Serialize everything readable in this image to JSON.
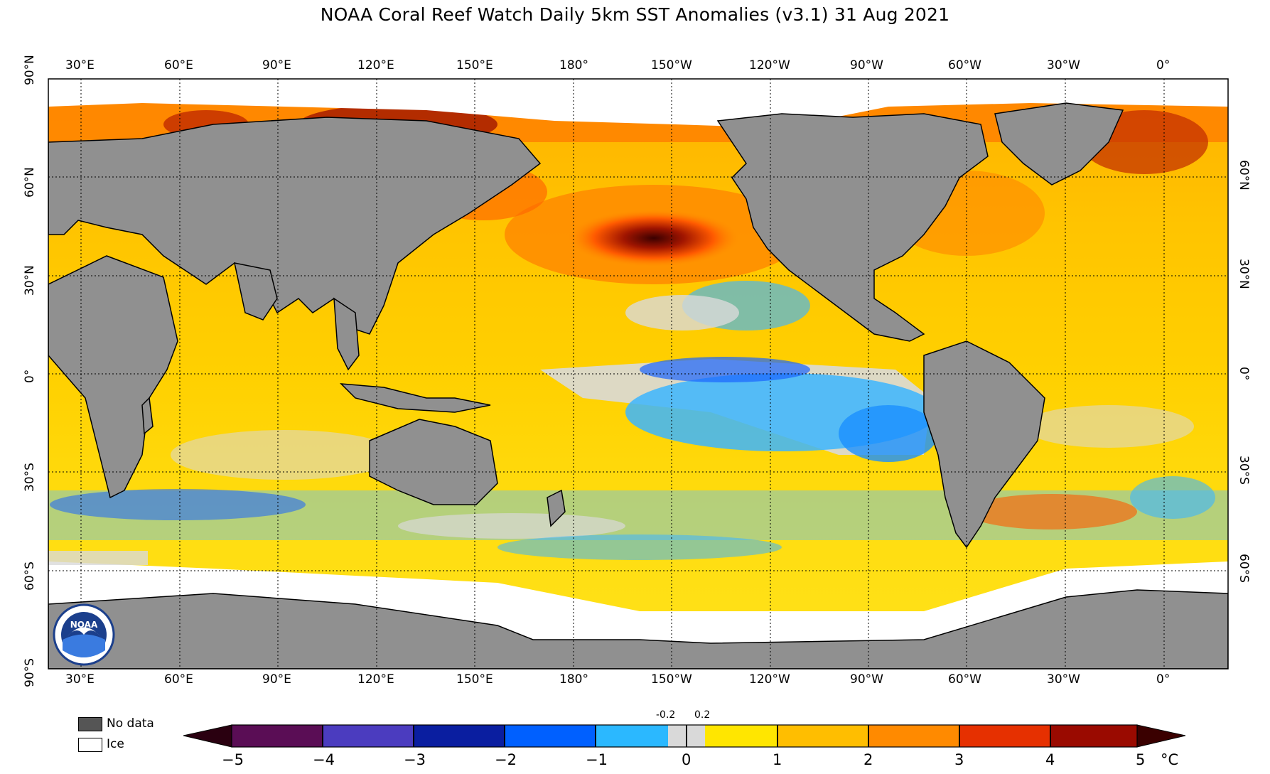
{
  "title": "NOAA Coral Reef Watch Daily 5km SST Anomalies  (v3.1)   31 Aug 2021",
  "longitude_labels": [
    "30°E",
    "60°E",
    "90°E",
    "120°E",
    "150°E",
    "180°",
    "150°W",
    "120°W",
    "90°W",
    "60°W",
    "30°W",
    "0°"
  ],
  "latitude_labels_left": [
    "90°N",
    "60°N",
    "30°N",
    "0°",
    "30°S",
    "60°S",
    "90°S"
  ],
  "latitude_labels_right": [
    "60°N",
    "30°N",
    "0°",
    "30°S",
    "60°S"
  ],
  "legend": {
    "no_data_label": "No data",
    "ice_label": "Ice",
    "no_data_color": "#555555",
    "ice_color": "#ffffff",
    "land_color": "#909090"
  },
  "colorbar": {
    "ticks": [
      "−5",
      "−4",
      "−3",
      "−2",
      "−1",
      "0",
      "1",
      "2",
      "3",
      "4",
      "5"
    ],
    "small_ticks": [
      "-0.2",
      "0.2"
    ],
    "unit": "°C",
    "colors": [
      "#3a0016",
      "#4b0a57",
      "#6c1a80",
      "#2a23a6",
      "#3340b8",
      "#0b138f",
      "#0033cc",
      "#1a64ff",
      "#3c93ff",
      "#5cc0ff",
      "#00e5ff",
      "#d9d9d9",
      "#ffff00",
      "#ffd21a",
      "#ffb000",
      "#ff8a00",
      "#ff5a00",
      "#e02000",
      "#a00000",
      "#6b0000",
      "#3a0000"
    ]
  },
  "logo_text": "NOAA"
}
